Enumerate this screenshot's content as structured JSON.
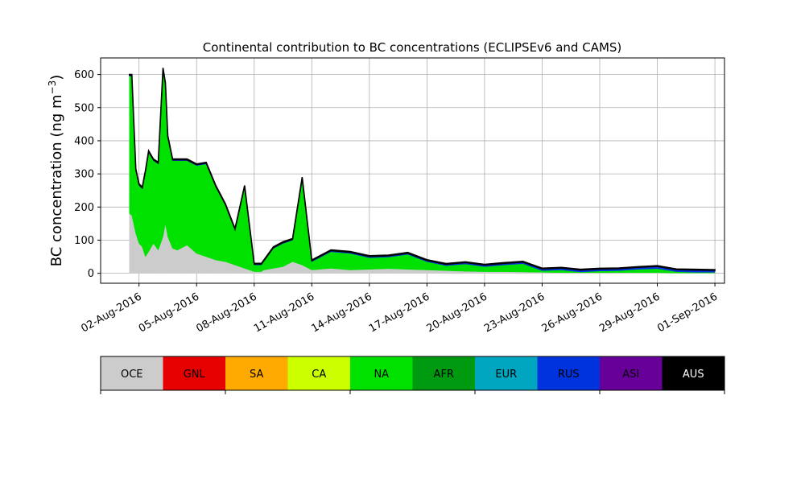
{
  "chart_data": {
    "type": "area",
    "stacked": true,
    "title": "Continental contribution to BC concentrations (ECLIPSEv6 and CAMS)",
    "ylabel_parts": [
      "BC concentration (ng m",
      "−3",
      ")"
    ],
    "ylim": [
      -30,
      650
    ],
    "yticks": [
      0,
      100,
      200,
      300,
      400,
      500,
      600
    ],
    "xlim": [
      "2016-07-31T00:00",
      "2016-09-01T12:00"
    ],
    "xticks": [
      {
        "date": "2016-08-02",
        "label": "02-Aug-2016"
      },
      {
        "date": "2016-08-05",
        "label": "05-Aug-2016"
      },
      {
        "date": "2016-08-08",
        "label": "08-Aug-2016"
      },
      {
        "date": "2016-08-11",
        "label": "11-Aug-2016"
      },
      {
        "date": "2016-08-14",
        "label": "14-Aug-2016"
      },
      {
        "date": "2016-08-17",
        "label": "17-Aug-2016"
      },
      {
        "date": "2016-08-20",
        "label": "20-Aug-2016"
      },
      {
        "date": "2016-08-23",
        "label": "23-Aug-2016"
      },
      {
        "date": "2016-08-26",
        "label": "26-Aug-2016"
      },
      {
        "date": "2016-08-29",
        "label": "29-Aug-2016"
      },
      {
        "date": "2016-09-01",
        "label": "01-Sep-2016"
      }
    ],
    "grid": true,
    "categories": [
      "OCE",
      "GNL",
      "SA",
      "CA",
      "NA",
      "AFR",
      "EUR",
      "RUS",
      "ASI",
      "AUS"
    ],
    "colors": [
      "#cccccc",
      "#e60000",
      "#ffaa00",
      "#ccff00",
      "#00e100",
      "#009a10",
      "#00a5bf",
      "#0033dd",
      "#660099",
      "#000000"
    ],
    "series": [
      {
        "name": "OCE",
        "color": "#cccccc",
        "x": [
          "2016-08-01T12:00",
          "2016-08-01T15:00",
          "2016-08-01T20:00",
          "2016-08-02T00:00",
          "2016-08-02T04:00",
          "2016-08-02T08:00",
          "2016-08-02T12:00",
          "2016-08-02T18:00",
          "2016-08-03T00:00",
          "2016-08-03T06:00",
          "2016-08-03T09:00",
          "2016-08-03T12:00",
          "2016-08-03T18:00",
          "2016-08-04T00:00",
          "2016-08-04T12:00",
          "2016-08-05T00:00",
          "2016-08-05T12:00",
          "2016-08-06T00:00",
          "2016-08-06T12:00",
          "2016-08-07T00:00",
          "2016-08-07T12:00",
          "2016-08-08T00:00",
          "2016-08-08T09:00",
          "2016-08-08T12:00",
          "2016-08-09T00:00",
          "2016-08-09T12:00",
          "2016-08-10T00:00",
          "2016-08-10T12:00",
          "2016-08-11T00:00",
          "2016-08-12T00:00",
          "2016-08-13T00:00",
          "2016-08-14T00:00",
          "2016-08-15T00:00",
          "2016-08-16T00:00",
          "2016-08-17T00:00",
          "2016-08-18T00:00",
          "2016-08-19T00:00",
          "2016-08-20T00:00",
          "2016-08-21T00:00",
          "2016-08-22T00:00",
          "2016-08-23T00:00",
          "2016-08-24T00:00",
          "2016-08-25T00:00",
          "2016-08-26T00:00",
          "2016-08-27T00:00",
          "2016-08-28T00:00",
          "2016-08-29T00:00",
          "2016-08-30T00:00",
          "2016-08-31T00:00",
          "2016-09-01T00:00"
        ],
        "values": [
          180,
          175,
          120,
          90,
          80,
          50,
          65,
          90,
          70,
          110,
          150,
          110,
          75,
          70,
          85,
          60,
          50,
          40,
          35,
          25,
          15,
          5,
          5,
          10,
          15,
          20,
          35,
          25,
          10,
          15,
          10,
          12,
          14,
          12,
          10,
          8,
          6,
          5,
          5,
          4,
          3,
          2,
          2,
          2,
          2,
          2,
          2,
          1,
          1,
          1
        ]
      },
      {
        "name": "NA",
        "color": "#00e100",
        "x": [
          "2016-08-01T12:00",
          "2016-08-01T15:00",
          "2016-08-01T20:00",
          "2016-08-02T00:00",
          "2016-08-02T04:00",
          "2016-08-02T08:00",
          "2016-08-02T12:00",
          "2016-08-02T18:00",
          "2016-08-03T00:00",
          "2016-08-03T06:00",
          "2016-08-03T09:00",
          "2016-08-03T12:00",
          "2016-08-03T18:00",
          "2016-08-04T00:00",
          "2016-08-04T12:00",
          "2016-08-05T00:00",
          "2016-08-05T12:00",
          "2016-08-06T00:00",
          "2016-08-06T12:00",
          "2016-08-07T00:00",
          "2016-08-07T12:00",
          "2016-08-08T00:00",
          "2016-08-08T09:00",
          "2016-08-08T12:00",
          "2016-08-09T00:00",
          "2016-08-09T12:00",
          "2016-08-10T00:00",
          "2016-08-10T12:00",
          "2016-08-11T00:00",
          "2016-08-12T00:00",
          "2016-08-13T00:00",
          "2016-08-14T00:00",
          "2016-08-15T00:00",
          "2016-08-16T00:00",
          "2016-08-17T00:00",
          "2016-08-18T00:00",
          "2016-08-19T00:00",
          "2016-08-20T00:00",
          "2016-08-21T00:00",
          "2016-08-22T00:00",
          "2016-08-23T00:00",
          "2016-08-24T00:00",
          "2016-08-25T00:00",
          "2016-08-26T00:00",
          "2016-08-27T00:00",
          "2016-08-28T00:00",
          "2016-08-29T00:00",
          "2016-08-30T00:00",
          "2016-08-31T00:00",
          "2016-09-01T00:00"
        ],
        "values": [
          415,
          420,
          190,
          175,
          175,
          255,
          300,
          250,
          260,
          505,
          420,
          300,
          265,
          270,
          255,
          265,
          280,
          220,
          170,
          105,
          245,
          20,
          20,
          25,
          60,
          70,
          65,
          260,
          25,
          50,
          50,
          35,
          35,
          45,
          25,
          15,
          22,
          15,
          20,
          25,
          5,
          8,
          2,
          5,
          6,
          10,
          12,
          4,
          2,
          2
        ]
      },
      {
        "name": "RUS",
        "color": "#0033dd",
        "x": [
          "2016-08-01T12:00",
          "2016-08-05T00:00",
          "2016-08-10T00:00",
          "2016-08-14T00:00",
          "2016-08-17T00:00",
          "2016-08-20T00:00",
          "2016-08-22T00:00",
          "2016-08-24T00:00",
          "2016-08-26T00:00",
          "2016-08-28T00:00",
          "2016-08-29T00:00",
          "2016-08-30T00:00",
          "2016-08-31T00:00",
          "2016-09-01T00:00"
        ],
        "values": [
          2,
          2,
          2,
          3,
          3,
          4,
          4,
          5,
          5,
          5,
          6,
          5,
          6,
          5
        ]
      },
      {
        "name": "ASI",
        "color": "#660099",
        "x": [
          "2016-08-01T12:00",
          "2016-08-10T00:00",
          "2016-08-20T00:00",
          "2016-08-26T00:00",
          "2016-08-29T00:00",
          "2016-09-01T00:00"
        ],
        "values": [
          1,
          1,
          1,
          1,
          1,
          1
        ]
      },
      {
        "name": "AUS",
        "color": "#000000",
        "x": [
          "2016-08-01T12:00",
          "2016-09-01T00:00"
        ],
        "values": [
          2,
          2
        ]
      }
    ]
  }
}
